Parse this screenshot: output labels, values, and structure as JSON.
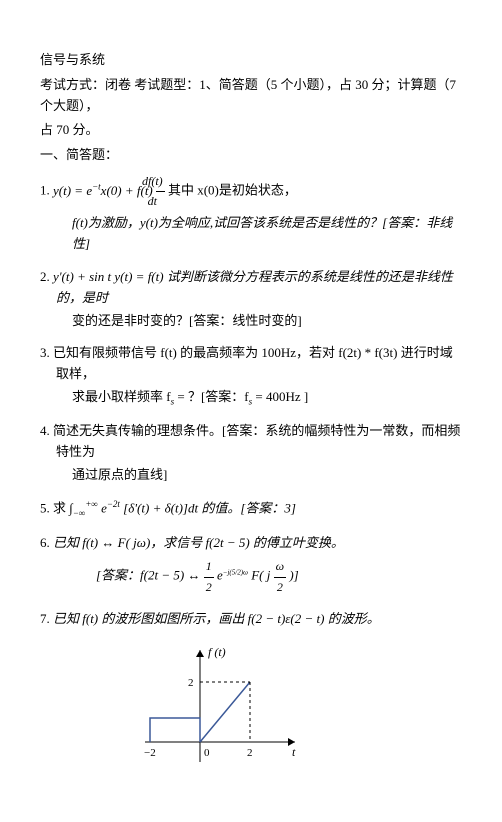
{
  "title": "信号与系统",
  "exam_info_line1": "考试方式：闭卷 考试题型：1、简答题（5 个小题），占 30 分；计算题（7 个大题），",
  "exam_info_line2": "占 70 分。",
  "section1_heading": "一、简答题：",
  "q1": {
    "num": "1.",
    "line1_prefix": "y(t) = e",
    "line1_exp": "−t",
    "line1_mid": "x(0) + f(t)",
    "line1_frac_num": "df(t)",
    "line1_frac_den": "dt",
    "line1_suffix": "其中 x(0)是初始状态，",
    "line2": "f(t)为激励，y(t)为全响应,试回答该系统是否是线性的？[答案：非线性]"
  },
  "q2": {
    "num": "2.",
    "line1": "y'(t) + sin t y(t) = f(t) 试判断该微分方程表示的系统是线性的还是非线性的，是时",
    "line2": "变的还是非时变的？[答案：线性时变的]"
  },
  "q3": {
    "num": "3.",
    "line1": "已知有限频带信号 f(t) 的最高频率为 100Hz，若对 f(2t) * f(3t) 进行时域取样，",
    "line2_prefix": "求最小取样频率 f",
    "line2_sub": "s",
    "line2_mid": " = ？[答案：f",
    "line2_sub2": "s",
    "line2_suffix": " = 400Hz ]"
  },
  "q4": {
    "num": "4.",
    "line1": "简述无失真传输的理想条件。[答案：系统的幅频特性为一常数，而相频特性为",
    "line2": "通过原点的直线]"
  },
  "q5": {
    "num": "5.",
    "prefix": "求 ∫",
    "int_upper": "+∞",
    "int_lower": "−∞",
    "exp_prefix": " e",
    "exp": "−2t",
    "mid": " [δ'(t) + δ(t)]dt 的值。[答案：3]"
  },
  "q6": {
    "num": "6.",
    "line1": "已知 f(t) ↔ F( jω)，求信号 f(2t − 5) 的傅立叶变换。",
    "answer_prefix": "[答案：f(2t − 5) ↔ ",
    "frac1_num": "1",
    "frac1_den": "2",
    "exp_e": "e",
    "exp_content": "−j(5/2)ω",
    "mid": " F( j",
    "frac2_num": "ω",
    "frac2_den": "2",
    "suffix": " )]"
  },
  "q7": {
    "num": "7.",
    "text": "已知 f(t) 的波形图如图所示，画出 f(2 − t)ε(2 − t) 的波形。"
  },
  "chart": {
    "y_label": "f (t)",
    "x_label": "t",
    "y_tick": "2",
    "x_ticks": [
      "−2",
      "0",
      "2"
    ],
    "line_color": "#3b5998",
    "axis_color": "#000000",
    "width": 160,
    "height": 130
  }
}
